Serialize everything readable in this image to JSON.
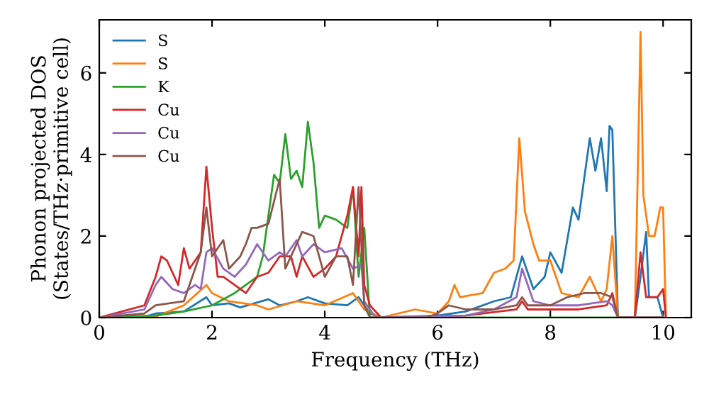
{
  "chart_data": {
    "type": "line",
    "xlabel": "Frequency (THz)",
    "ylabel": "Phonon projected DOS\n(States/THz·primitive cell)",
    "xlim": [
      0,
      10.5
    ],
    "ylim": [
      0,
      7.3
    ],
    "xticks": [
      0,
      2,
      4,
      6,
      8,
      10
    ],
    "yticks": [
      0,
      2,
      4,
      6
    ],
    "grid": false,
    "legend": "top left",
    "marker": "none",
    "line_style": "solid",
    "series": [
      {
        "name": "S",
        "color": "#1f77b4",
        "x": [
          0,
          0.8,
          1,
          1.5,
          1.9,
          2,
          2.3,
          2.5,
          3,
          3.2,
          3.5,
          3.7,
          4,
          4.4,
          4.6,
          4.8,
          5,
          6,
          6.5,
          7,
          7.3,
          7.5,
          7.7,
          7.9,
          8,
          8.2,
          8.4,
          8.5,
          8.7,
          8.8,
          8.9,
          9,
          9.05,
          9.1,
          9.2,
          9.5,
          9.6,
          9.7,
          9.75,
          9.9,
          10
        ],
        "values": [
          0,
          0.02,
          0.1,
          0.15,
          0.5,
          0.3,
          0.35,
          0.25,
          0.45,
          0.3,
          0.4,
          0.5,
          0.35,
          0.3,
          0.5,
          0.1,
          0,
          0.05,
          0.15,
          0.4,
          0.5,
          1.5,
          0.7,
          1,
          1.6,
          1.1,
          2.7,
          2.4,
          4.4,
          3.6,
          4.4,
          3.1,
          4.7,
          4.6,
          0,
          0,
          1,
          2.1,
          0.5,
          0.5,
          0
        ]
      },
      {
        "name": "S",
        "color": "#ff7f0e",
        "x": [
          0,
          1,
          1.5,
          1.9,
          2,
          2.3,
          2.8,
          3,
          3.5,
          4,
          4.5,
          4.7,
          5,
          5.6,
          6,
          6.2,
          6.3,
          6.4,
          6.8,
          7,
          7.2,
          7.35,
          7.45,
          7.55,
          7.7,
          7.8,
          8,
          8.2,
          8.5,
          8.7,
          8.9,
          9,
          9.1,
          9.2,
          9.5,
          9.6,
          9.65,
          9.75,
          9.85,
          9.95,
          10,
          10.05
        ],
        "values": [
          0,
          0.02,
          0.3,
          0.8,
          0.6,
          0.4,
          0.3,
          0.2,
          0.4,
          0.3,
          0.6,
          0.2,
          0,
          0.2,
          0.1,
          0.4,
          0.8,
          0.5,
          0.6,
          1.1,
          1.2,
          1.4,
          4.4,
          2.6,
          1.8,
          1.4,
          1.4,
          0.6,
          0.5,
          1,
          0.4,
          0.7,
          2,
          0,
          0,
          7,
          3,
          2,
          2,
          2.7,
          2.7,
          0
        ]
      },
      {
        "name": "K",
        "color": "#2ca02c",
        "x": [
          0,
          1,
          1.5,
          2,
          2.4,
          2.6,
          2.8,
          2.9,
          3,
          3.1,
          3.2,
          3.3,
          3.4,
          3.5,
          3.6,
          3.7,
          3.8,
          3.9,
          4,
          4.2,
          4.4,
          4.5,
          4.6,
          4.7,
          4.8,
          10
        ],
        "values": [
          0,
          0.05,
          0.15,
          0.3,
          0.6,
          0.8,
          1,
          1.5,
          2.5,
          3.5,
          3.3,
          4.5,
          3.4,
          3.6,
          3.2,
          4.8,
          3.8,
          2.2,
          2.5,
          2.4,
          2.2,
          3.2,
          1,
          2.2,
          0,
          0
        ]
      },
      {
        "name": "Cu",
        "color": "#d62728",
        "x": [
          0,
          0.8,
          1,
          1.1,
          1.2,
          1.4,
          1.5,
          1.6,
          1.8,
          1.9,
          2,
          2.1,
          2.2,
          2.4,
          2.6,
          2.8,
          3,
          3.2,
          3.4,
          3.5,
          3.6,
          3.8,
          4,
          4.2,
          4.4,
          4.5,
          4.6,
          4.65,
          4.7,
          4.8,
          5,
          6.5,
          7.4,
          7.5,
          7.6,
          8.5,
          9,
          9.1,
          9.2,
          9.5,
          9.6,
          9.7,
          9.9,
          10,
          10.05
        ],
        "values": [
          0,
          0.3,
          1,
          1.5,
          1.4,
          0.8,
          1.7,
          1.2,
          1.6,
          3.7,
          2.2,
          1,
          1,
          0.8,
          0.6,
          1,
          1.1,
          1.5,
          1.5,
          1,
          1.5,
          1,
          1.2,
          1.5,
          2.5,
          3.2,
          1.5,
          3.2,
          0.8,
          0.3,
          0,
          0.05,
          0.2,
          0.4,
          0.2,
          0.2,
          0.3,
          0.6,
          0,
          0,
          1.6,
          0.5,
          0.5,
          0.7,
          0
        ]
      },
      {
        "name": "Cu",
        "color": "#9467bd",
        "x": [
          0,
          0.8,
          1,
          1.1,
          1.3,
          1.5,
          1.7,
          1.8,
          1.9,
          2,
          2.2,
          2.4,
          2.6,
          2.8,
          3,
          3.2,
          3.3,
          3.5,
          3.6,
          3.8,
          4,
          4.3,
          4.5,
          4.65,
          4.7,
          4.9,
          6.5,
          7,
          7.4,
          7.5,
          7.7,
          8,
          8.5,
          9,
          9.1,
          9.2,
          9.6,
          10
        ],
        "values": [
          0,
          0.2,
          0.8,
          1,
          0.7,
          0.6,
          0.8,
          0.7,
          1.6,
          1.7,
          1.2,
          1,
          1.3,
          1.8,
          1.4,
          1.6,
          1.5,
          1.9,
          1.5,
          1.8,
          1.6,
          1.7,
          1.2,
          1.3,
          0.4,
          0,
          0.05,
          0.2,
          0.5,
          1.2,
          0.4,
          0.3,
          0.3,
          0.4,
          0.3,
          0,
          0,
          0
        ]
      },
      {
        "name": "Cu",
        "color": "#8c564b",
        "x": [
          0,
          0.8,
          1,
          1.5,
          1.7,
          1.8,
          1.9,
          2,
          2.2,
          2.3,
          2.5,
          2.6,
          2.7,
          2.8,
          3,
          3.2,
          3.3,
          3.4,
          3.6,
          3.8,
          4,
          4.2,
          4.4,
          4.5,
          4.6,
          4.7,
          4.8,
          5.8,
          6,
          6.2,
          6.5,
          7,
          7.4,
          7.5,
          7.6,
          8,
          8.3,
          8.6,
          8.9,
          9.1,
          9.2,
          9.6,
          10
        ],
        "values": [
          0,
          0.1,
          0.3,
          0.4,
          1.2,
          1.6,
          2.7,
          1.5,
          1.9,
          1.2,
          1.5,
          1.8,
          2.2,
          2.2,
          2.3,
          3.4,
          1.2,
          1.5,
          2.1,
          2,
          1,
          1.5,
          1.5,
          0.8,
          3.2,
          0.3,
          0,
          0,
          0.1,
          0.3,
          0.2,
          0.2,
          0.3,
          0.5,
          0.3,
          0.3,
          0.5,
          0.6,
          0.6,
          0.5,
          0,
          0,
          0
        ]
      }
    ]
  }
}
